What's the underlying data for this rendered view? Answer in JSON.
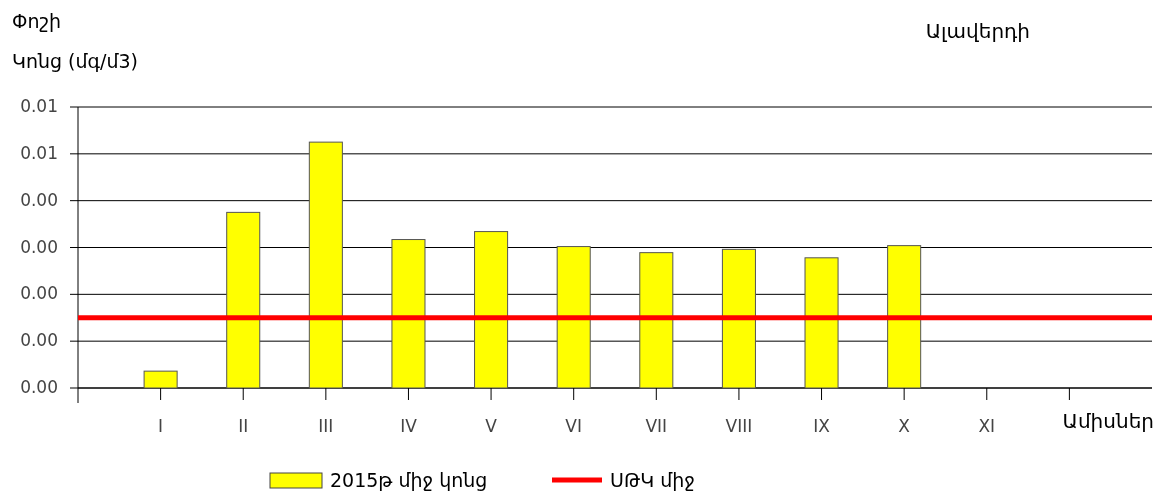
{
  "chart_data": {
    "type": "bar",
    "title": "Ալավերդի",
    "ylabel": "Փոշի\nԿոնց (մգ/մ3)",
    "xlabel": "Ամիսներ",
    "categories": [
      "I",
      "II",
      "III",
      "IV",
      "V",
      "VI",
      "VII",
      "VIII",
      "IX",
      "X",
      "XI",
      null
    ],
    "series": [
      {
        "name": "2015թ միջ կոնց",
        "color": "#ffff00",
        "values": [
          0.00036,
          0.00375,
          0.00525,
          0.00317,
          0.00334,
          0.00302,
          0.00289,
          0.00296,
          0.00278,
          0.00304,
          null,
          null
        ]
      }
    ],
    "ylim": [
      0,
      0.006
    ],
    "yticks": [
      {
        "value": 0,
        "label": "0.00"
      },
      {
        "value": 0.001,
        "label": "0.00"
      },
      {
        "value": 0.002,
        "label": "0.00"
      },
      {
        "value": 0.003,
        "label": "0.00"
      },
      {
        "value": 0.004,
        "label": "0.00"
      },
      {
        "value": 0.005,
        "label": "0.01"
      },
      {
        "value": 0.006,
        "label": "0.01"
      }
    ],
    "ref_lines": [
      {
        "axis": "y",
        "value": 0.0015,
        "label": "ՍԹԿ միջ",
        "color": "#ff0000"
      }
    ],
    "grid": "y",
    "legend": "bottom"
  }
}
